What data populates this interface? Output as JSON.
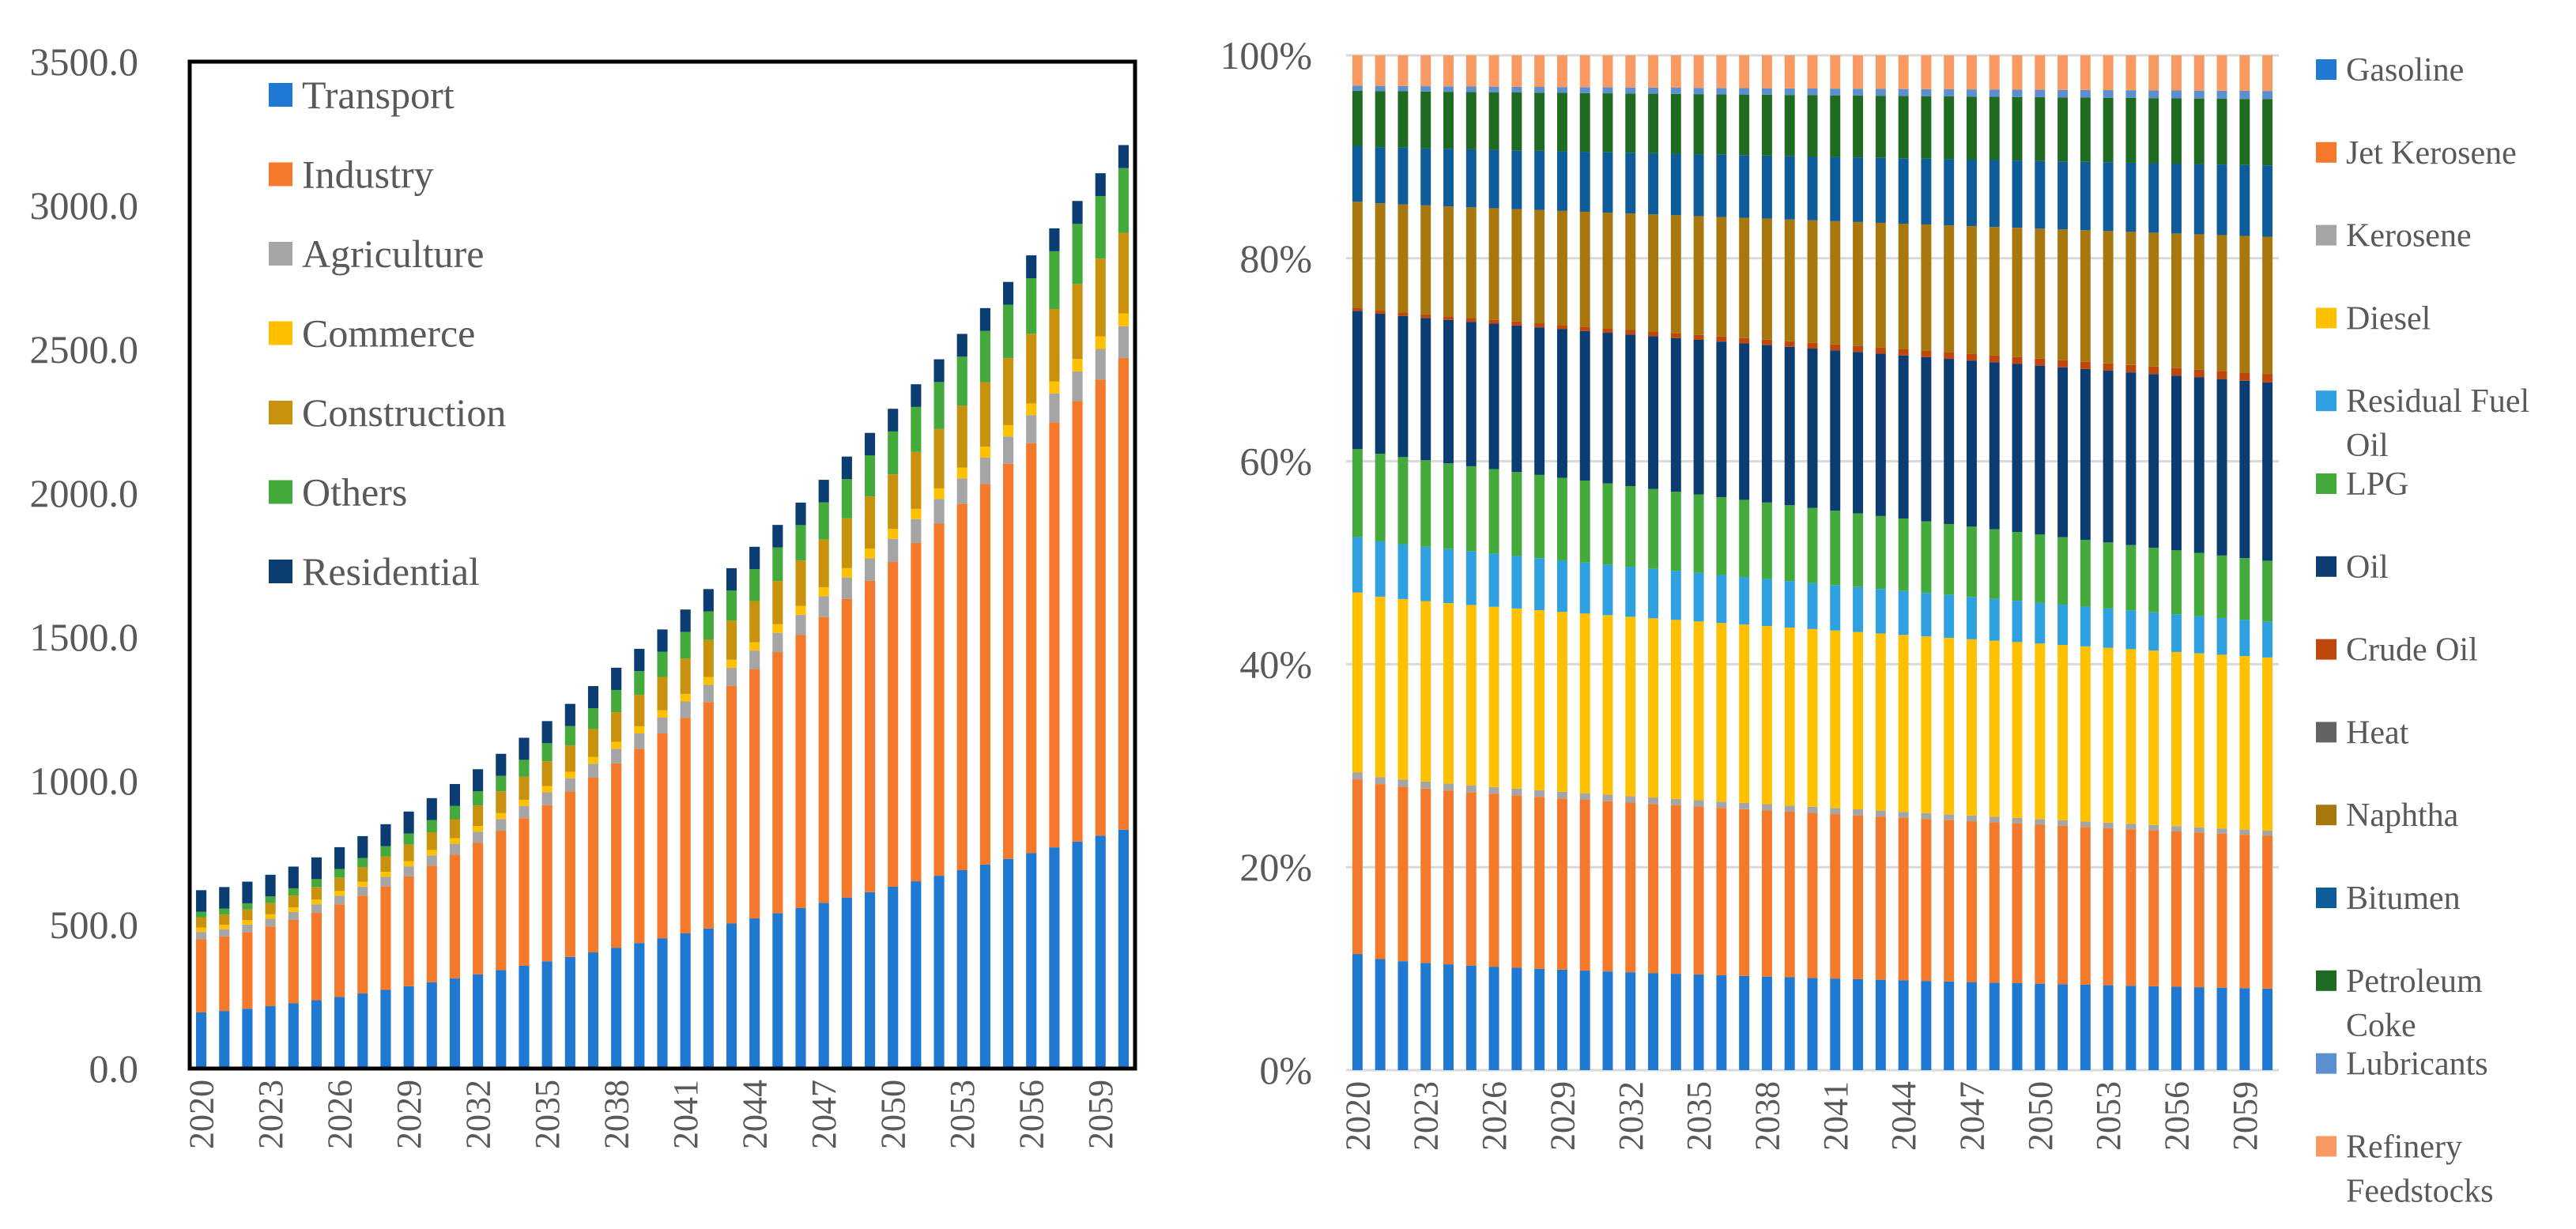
{
  "chart_data": [
    {
      "id": "left",
      "type": "bar",
      "stacked": true,
      "title": "",
      "xlabel": "",
      "ylabel": "",
      "ylim": [
        0,
        3500
      ],
      "y_ticks": [
        "0.0",
        "500.0",
        "1000.0",
        "1500.0",
        "2000.0",
        "2500.0",
        "3000.0",
        "3500.0"
      ],
      "x_tick_labels": [
        "2020",
        "2023",
        "2026",
        "2029",
        "2032",
        "2035",
        "2038",
        "2041",
        "2044",
        "2047",
        "2050",
        "2053",
        "2056",
        "2059"
      ],
      "year_start": 2020,
      "year_end": 2060,
      "legend_position": "top-left inside",
      "series": [
        {
          "name": "Transport",
          "color": "#1f78d1",
          "start": 195,
          "end": 830,
          "exp": 1.3
        },
        {
          "name": "Industry",
          "color": "#f5792a",
          "start": 255,
          "end": 1640,
          "exp": 1.6
        },
        {
          "name": "Agriculture",
          "color": "#a5a5a5",
          "start": 25,
          "end": 110,
          "exp": 1.5
        },
        {
          "name": "Commerce",
          "color": "#ffc000",
          "start": 15,
          "end": 45,
          "exp": 1.5
        },
        {
          "name": "Construction",
          "color": "#c9920e",
          "start": 35,
          "end": 280,
          "exp": 1.6
        },
        {
          "name": "Others",
          "color": "#43aa3b",
          "start": 20,
          "end": 225,
          "exp": 1.6
        },
        {
          "name": "Residential",
          "color": "#0b3d73",
          "start": 75,
          "end": 80,
          "exp": 1.0
        }
      ]
    },
    {
      "id": "right",
      "type": "bar",
      "stacked": true,
      "normalized": true,
      "title": "",
      "xlabel": "",
      "ylabel": "",
      "ylim": [
        0,
        100
      ],
      "y_ticks": [
        "0%",
        "20%",
        "40%",
        "60%",
        "80%",
        "100%"
      ],
      "x_tick_labels": [
        "2020",
        "2023",
        "2026",
        "2029",
        "2032",
        "2035",
        "2038",
        "2041",
        "2044",
        "2047",
        "2050",
        "2053",
        "2056",
        "2059"
      ],
      "year_start": 2020,
      "year_end": 2060,
      "legend_position": "right",
      "series": [
        {
          "name": "Gasoline",
          "label_lines": [
            "Gasoline"
          ],
          "color": "#1f78d1",
          "start": 11.5,
          "end": 8.0,
          "exp": 0.5
        },
        {
          "name": "Jet Kerosene",
          "label_lines": [
            "Jet Kerosene"
          ],
          "color": "#f5792a",
          "start": 17.3,
          "end": 15.0,
          "exp": 1.0
        },
        {
          "name": "Kerosene",
          "label_lines": [
            "Kerosene"
          ],
          "color": "#a5a5a5",
          "start": 0.7,
          "end": 0.5,
          "exp": 1.0
        },
        {
          "name": "Diesel",
          "label_lines": [
            "Diesel"
          ],
          "color": "#ffc000",
          "start": 17.8,
          "end": 17.0,
          "exp": 1.0
        },
        {
          "name": "Residual Fuel Oil",
          "label_lines": [
            "Residual Fuel",
            "Oil"
          ],
          "color": "#2fa0e0",
          "start": 5.5,
          "end": 3.5,
          "exp": 1.0
        },
        {
          "name": "LPG",
          "label_lines": [
            "LPG"
          ],
          "color": "#43aa3b",
          "start": 8.7,
          "end": 6.0,
          "exp": 1.0
        },
        {
          "name": "Oil",
          "label_lines": [
            "Oil"
          ],
          "color": "#0b3d73",
          "start": 13.7,
          "end": 17.5,
          "exp": 1.0
        },
        {
          "name": "Crude Oil",
          "label_lines": [
            "Crude Oil"
          ],
          "color": "#c0470c",
          "start": 0.3,
          "end": 0.8,
          "exp": 1.0
        },
        {
          "name": "Heat",
          "label_lines": [
            "Heat"
          ],
          "color": "#636363",
          "start": 0.0,
          "end": 0.0,
          "exp": 1.0
        },
        {
          "name": "Naphtha",
          "label_lines": [
            "Naphtha"
          ],
          "color": "#a8780f",
          "start": 10.5,
          "end": 13.5,
          "exp": 1.0
        },
        {
          "name": "Bitumen",
          "label_lines": [
            "Bitumen"
          ],
          "color": "#0e5c9a",
          "start": 5.5,
          "end": 7.0,
          "exp": 1.0
        },
        {
          "name": "Petroleum Coke",
          "label_lines": [
            "Petroleum",
            "Coke"
          ],
          "color": "#1f6b22",
          "start": 5.5,
          "end": 6.5,
          "exp": 1.0
        },
        {
          "name": "Lubricants",
          "label_lines": [
            "Lubricants"
          ],
          "color": "#5b8fd0",
          "start": 0.5,
          "end": 0.8,
          "exp": 1.0
        },
        {
          "name": "Refinery Feedstocks",
          "label_lines": [
            "Refinery",
            "Feedstocks"
          ],
          "color": "#f99a63",
          "start": 3.0,
          "end": 3.5,
          "exp": 1.0
        }
      ]
    }
  ]
}
